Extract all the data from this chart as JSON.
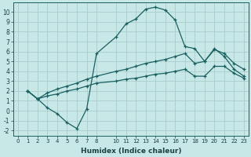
{
  "xlabel": "Humidex (Indice chaleur)",
  "background_color": "#c8e8e8",
  "grid_color": "#a8cccc",
  "line_color": "#1a6060",
  "xlim": [
    -0.5,
    23.5
  ],
  "ylim": [
    -2.5,
    11.0
  ],
  "xticks": [
    0,
    1,
    2,
    3,
    4,
    5,
    6,
    7,
    8,
    10,
    11,
    12,
    13,
    14,
    15,
    16,
    17,
    18,
    19,
    20,
    21,
    22,
    23
  ],
  "yticks": [
    -2,
    -1,
    0,
    1,
    2,
    3,
    4,
    5,
    6,
    7,
    8,
    9,
    10
  ],
  "lines": [
    {
      "x": [
        1,
        2,
        3,
        4,
        5,
        6,
        7,
        8,
        10,
        11,
        12,
        13,
        14,
        15,
        16,
        17,
        18,
        19,
        20,
        21,
        22,
        23
      ],
      "y": [
        2.0,
        1.2,
        0.3,
        -0.3,
        -1.2,
        -1.8,
        0.2,
        5.8,
        7.5,
        8.8,
        9.3,
        10.3,
        10.5,
        10.2,
        9.2,
        6.5,
        6.3,
        5.0,
        6.3,
        5.5,
        4.2,
        3.5
      ]
    },
    {
      "x": [
        1,
        2,
        3,
        4,
        5,
        6,
        7,
        8,
        10,
        11,
        12,
        13,
        14,
        15,
        16,
        17,
        18,
        19,
        20,
        21,
        22,
        23
      ],
      "y": [
        2.0,
        1.2,
        1.8,
        2.2,
        2.5,
        2.8,
        3.2,
        3.5,
        4.0,
        4.2,
        4.5,
        4.8,
        5.0,
        5.2,
        5.5,
        5.8,
        4.8,
        5.0,
        6.2,
        5.8,
        4.8,
        4.2
      ]
    },
    {
      "x": [
        1,
        2,
        3,
        4,
        5,
        6,
        7,
        8,
        10,
        11,
        12,
        13,
        14,
        15,
        16,
        17,
        18,
        19,
        20,
        21,
        22,
        23
      ],
      "y": [
        2.0,
        1.2,
        1.5,
        1.7,
        2.0,
        2.2,
        2.5,
        2.8,
        3.0,
        3.2,
        3.3,
        3.5,
        3.7,
        3.8,
        4.0,
        4.2,
        3.5,
        3.5,
        4.5,
        4.5,
        3.8,
        3.3
      ]
    }
  ]
}
